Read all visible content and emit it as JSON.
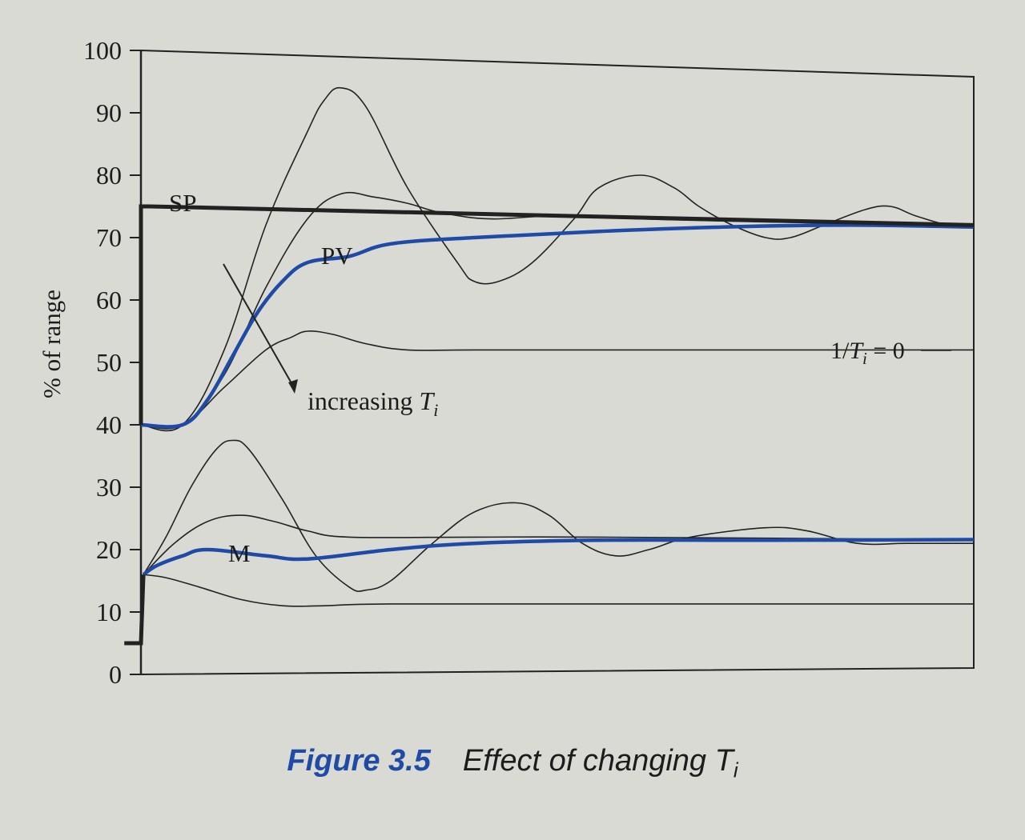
{
  "chart_data": {
    "type": "line",
    "ylabel": "% of range",
    "ylim": [
      0,
      100
    ],
    "yticks": [
      0,
      10,
      20,
      30,
      40,
      50,
      60,
      70,
      80,
      90,
      100
    ],
    "xlabel": "",
    "grid": false,
    "annotations": {
      "sp": "SP",
      "pv": "PV",
      "m": "M",
      "increasing": "increasing ",
      "ti_symbol": "T",
      "ti_sub": "i",
      "inv_prefix": "1/",
      "inv_suffix": " = 0"
    },
    "series": [
      {
        "name": "SP",
        "color": "#222222",
        "width": 5,
        "points": [
          [
            0,
            40
          ],
          [
            0,
            75
          ],
          [
            1,
            75
          ],
          [
            100,
            72
          ]
        ]
      },
      {
        "name": "PV",
        "color": "#1f4aa6",
        "width": 4.5,
        "points": [
          [
            0,
            40
          ],
          [
            5,
            40
          ],
          [
            8,
            44
          ],
          [
            11,
            51
          ],
          [
            14,
            58
          ],
          [
            17,
            63
          ],
          [
            20,
            66
          ],
          [
            25,
            67
          ],
          [
            30,
            69
          ],
          [
            40,
            70
          ],
          [
            55,
            71
          ],
          [
            70,
            71.7
          ],
          [
            85,
            72
          ],
          [
            100,
            71.7
          ]
        ]
      },
      {
        "name": "",
        "color": "#222222",
        "width": 1.6,
        "points": [
          [
            0,
            40
          ],
          [
            5,
            40
          ],
          [
            10,
            52
          ],
          [
            15,
            72
          ],
          [
            20,
            87
          ],
          [
            22,
            92
          ],
          [
            24,
            94
          ],
          [
            27,
            91
          ],
          [
            32,
            78
          ],
          [
            38,
            66
          ],
          [
            40,
            63
          ],
          [
            43,
            63
          ],
          [
            47,
            66
          ],
          [
            52,
            73
          ],
          [
            55,
            78
          ],
          [
            60,
            80
          ],
          [
            64,
            78
          ],
          [
            67,
            75
          ],
          [
            71,
            72
          ],
          [
            75,
            70
          ],
          [
            78,
            70
          ],
          [
            82,
            72
          ],
          [
            87,
            74.5
          ],
          [
            90,
            75
          ],
          [
            93,
            73.5
          ],
          [
            97,
            72
          ],
          [
            100,
            72
          ]
        ]
      },
      {
        "name": "",
        "color": "#222222",
        "width": 1.6,
        "points": [
          [
            0,
            40
          ],
          [
            5,
            40
          ],
          [
            10,
            48
          ],
          [
            15,
            62
          ],
          [
            20,
            73
          ],
          [
            24,
            77
          ],
          [
            28,
            76.5
          ],
          [
            32,
            75.5
          ],
          [
            36,
            74
          ],
          [
            42,
            73
          ],
          [
            50,
            73.5
          ],
          [
            60,
            73
          ],
          [
            75,
            72.5
          ],
          [
            100,
            72
          ]
        ]
      },
      {
        "name": "",
        "color": "#222222",
        "width": 1.6,
        "points": [
          [
            0,
            40
          ],
          [
            5,
            40
          ],
          [
            10,
            46
          ],
          [
            15,
            52
          ],
          [
            18,
            54
          ],
          [
            20,
            55
          ],
          [
            23,
            54.5
          ],
          [
            27,
            53
          ],
          [
            32,
            52
          ],
          [
            40,
            52
          ],
          [
            60,
            52
          ],
          [
            100,
            52
          ]
        ]
      },
      {
        "name": "",
        "color": "#222222",
        "width": 5,
        "points": [
          [
            -2,
            5
          ],
          [
            0,
            5
          ],
          [
            0.3,
            16
          ]
        ]
      },
      {
        "name": "M",
        "color": "#1f4aa6",
        "width": 4.5,
        "points": [
          [
            0.3,
            16
          ],
          [
            2,
            17.5
          ],
          [
            5,
            19
          ],
          [
            8,
            20
          ],
          [
            15,
            19
          ],
          [
            20,
            18.5
          ],
          [
            30,
            20
          ],
          [
            40,
            21
          ],
          [
            55,
            21.5
          ],
          [
            75,
            21.5
          ],
          [
            100,
            21.6
          ]
        ]
      },
      {
        "name": "",
        "color": "#222222",
        "width": 1.6,
        "points": [
          [
            0.3,
            16
          ],
          [
            3,
            22
          ],
          [
            6,
            30
          ],
          [
            9,
            36
          ],
          [
            11,
            37.5
          ],
          [
            13,
            36
          ],
          [
            17,
            28
          ],
          [
            21,
            19
          ],
          [
            25,
            14
          ],
          [
            27,
            13.5
          ],
          [
            30,
            15
          ],
          [
            35,
            21
          ],
          [
            40,
            26
          ],
          [
            45,
            27.5
          ],
          [
            49,
            25.5
          ],
          [
            53,
            21
          ],
          [
            57,
            19
          ],
          [
            61,
            20
          ],
          [
            66,
            22
          ],
          [
            75,
            23.5
          ],
          [
            80,
            23
          ],
          [
            86,
            21
          ],
          [
            92,
            21
          ],
          [
            100,
            21
          ]
        ]
      },
      {
        "name": "",
        "color": "#222222",
        "width": 1.6,
        "points": [
          [
            0.3,
            16
          ],
          [
            4,
            21
          ],
          [
            8,
            24.5
          ],
          [
            12,
            25.5
          ],
          [
            16,
            24.5
          ],
          [
            20,
            23
          ],
          [
            25,
            22
          ],
          [
            40,
            22
          ],
          [
            55,
            22
          ],
          [
            100,
            21.6
          ]
        ]
      },
      {
        "name": "",
        "color": "#222222",
        "width": 1.6,
        "points": [
          [
            0.3,
            16
          ],
          [
            3,
            15.5
          ],
          [
            7,
            14
          ],
          [
            12,
            12
          ],
          [
            17,
            11
          ],
          [
            22,
            11
          ],
          [
            30,
            11.3
          ],
          [
            60,
            11.3
          ],
          [
            100,
            11.3
          ]
        ]
      }
    ]
  },
  "caption": {
    "figure": "Figure 3.5",
    "text": "Effect of changing T",
    "subscript": "i"
  }
}
